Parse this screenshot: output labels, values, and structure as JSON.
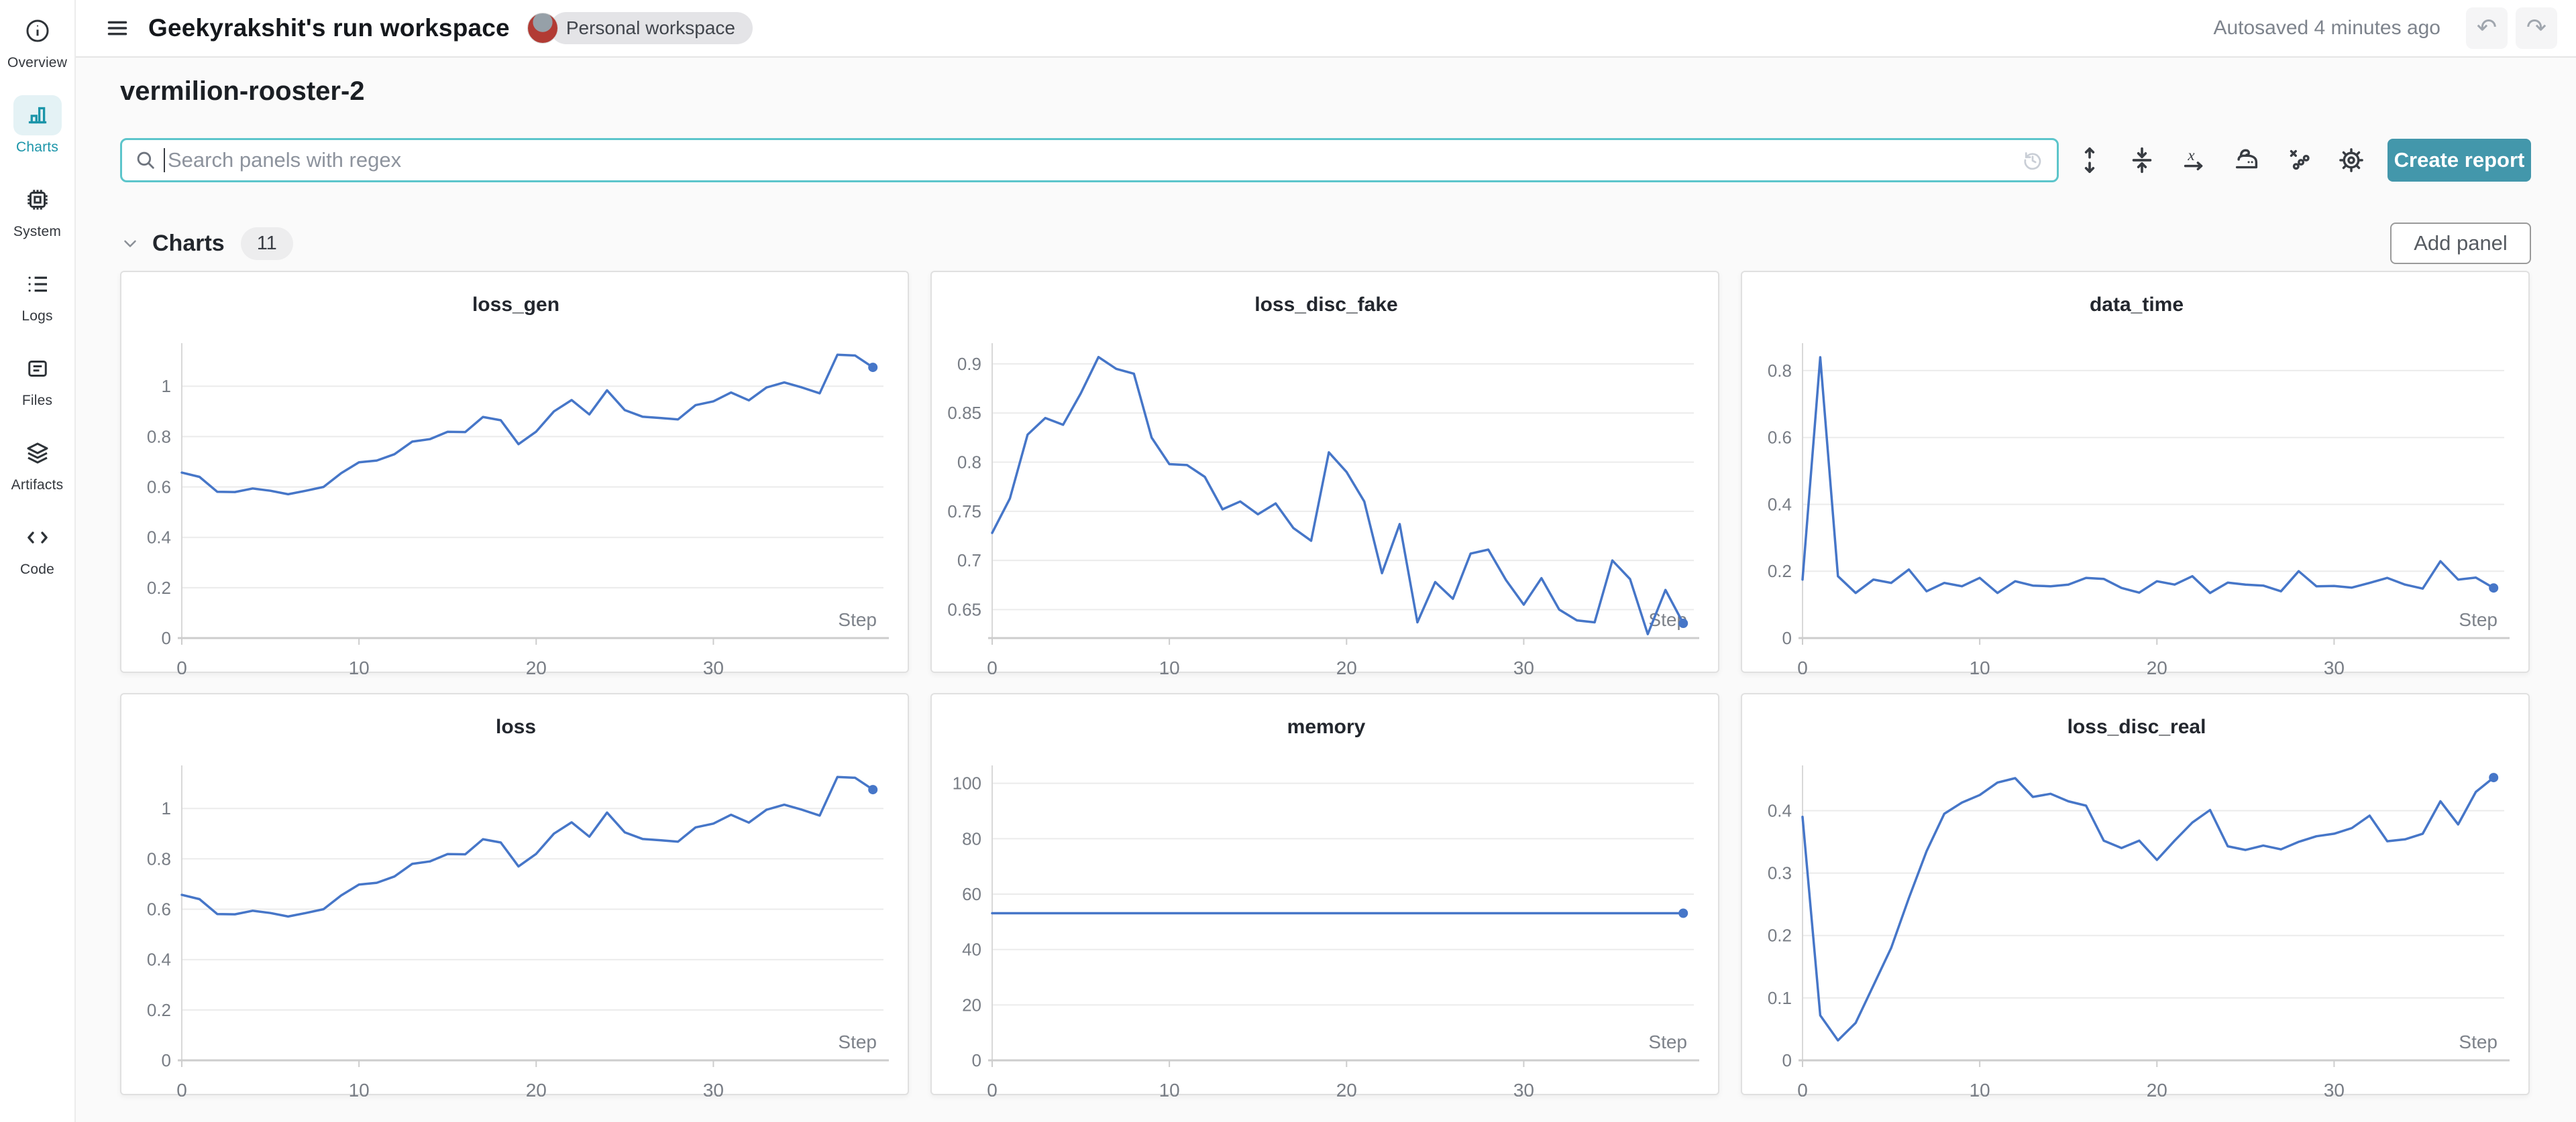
{
  "header": {
    "title": "Geekyrakshit's run workspace",
    "workspace_badge": "Personal workspace",
    "autosaved": "Autosaved 4 minutes ago"
  },
  "sidebar": {
    "items": [
      {
        "label": "Overview",
        "icon": "info-icon",
        "active": false
      },
      {
        "label": "Charts",
        "icon": "bar-chart-icon",
        "active": true
      },
      {
        "label": "System",
        "icon": "cpu-icon",
        "active": false
      },
      {
        "label": "Logs",
        "icon": "list-icon",
        "active": false
      },
      {
        "label": "Files",
        "icon": "document-icon",
        "active": false
      },
      {
        "label": "Artifacts",
        "icon": "layers-icon",
        "active": false
      },
      {
        "label": "Code",
        "icon": "code-icon",
        "active": false
      }
    ]
  },
  "run": {
    "name": "vermilion-rooster-2"
  },
  "search": {
    "placeholder": "Search panels with regex"
  },
  "toolbar": {
    "icons": [
      "expand-panels-icon",
      "collapse-panels-icon",
      "x-axis-icon",
      "smoothing-icon",
      "outliers-icon",
      "settings-gear-icon"
    ],
    "create_report_label": "Create report"
  },
  "section": {
    "label": "Charts",
    "count": "11",
    "add_panel_label": "Add panel"
  },
  "colors": {
    "accent_teal": "#4397ab",
    "search_border": "#5cc5cb",
    "active_nav_teal": "#1b95a9",
    "line_blue": "#4676c8",
    "background": "#fafafa"
  },
  "chart_data": [
    {
      "type": "line",
      "title": "loss_gen",
      "xlabel": "Step",
      "x_ticks": [
        0,
        10,
        20,
        30
      ],
      "xlim": [
        0,
        39.6
      ],
      "y_ticks": [
        0,
        0.2,
        0.4,
        0.6,
        0.8,
        1
      ],
      "ylim": [
        0,
        1.155
      ],
      "x_is_step_index": true,
      "grid": true,
      "color": "#4676c8",
      "values": [
        0.657,
        0.64,
        0.581,
        0.58,
        0.594,
        0.585,
        0.571,
        0.585,
        0.6,
        0.655,
        0.698,
        0.705,
        0.73,
        0.78,
        0.79,
        0.819,
        0.818,
        0.878,
        0.865,
        0.77,
        0.82,
        0.9,
        0.945,
        0.888,
        0.984,
        0.905,
        0.879,
        0.874,
        0.868,
        0.925,
        0.94,
        0.975,
        0.944,
        0.995,
        1.015,
        0.995,
        0.972,
        1.125,
        1.122,
        1.075
      ]
    },
    {
      "type": "line",
      "title": "loss_disc_fake",
      "xlabel": "Step",
      "x_ticks": [
        0,
        10,
        20,
        30
      ],
      "xlim": [
        0,
        39.6
      ],
      "y_ticks": [
        0.65,
        0.7,
        0.75,
        0.8,
        0.85,
        0.9
      ],
      "ylim": [
        0.621,
        0.917
      ],
      "x_is_step_index": true,
      "grid": true,
      "color": "#4676c8",
      "values": [
        0.728,
        0.763,
        0.828,
        0.845,
        0.838,
        0.87,
        0.907,
        0.895,
        0.89,
        0.825,
        0.798,
        0.797,
        0.785,
        0.752,
        0.76,
        0.747,
        0.758,
        0.733,
        0.72,
        0.81,
        0.79,
        0.76,
        0.687,
        0.737,
        0.637,
        0.678,
        0.661,
        0.707,
        0.711,
        0.68,
        0.655,
        0.682,
        0.65,
        0.639,
        0.637,
        0.7,
        0.681,
        0.625,
        0.67,
        0.636
      ]
    },
    {
      "type": "line",
      "title": "data_time",
      "xlabel": "Step",
      "x_ticks": [
        0,
        10,
        20,
        30
      ],
      "xlim": [
        0,
        39.6
      ],
      "y_ticks": [
        0,
        0.2,
        0.4,
        0.6,
        0.8
      ],
      "ylim": [
        0,
        0.87
      ],
      "x_is_step_index": true,
      "grid": true,
      "color": "#4676c8",
      "values": [
        0.175,
        0.84,
        0.185,
        0.135,
        0.175,
        0.165,
        0.205,
        0.14,
        0.165,
        0.155,
        0.18,
        0.135,
        0.17,
        0.157,
        0.155,
        0.16,
        0.18,
        0.177,
        0.15,
        0.136,
        0.17,
        0.16,
        0.185,
        0.135,
        0.166,
        0.16,
        0.157,
        0.14,
        0.2,
        0.155,
        0.156,
        0.151,
        0.165,
        0.18,
        0.16,
        0.148,
        0.23,
        0.175,
        0.181,
        0.15
      ]
    },
    {
      "type": "line",
      "title": "loss",
      "xlabel": "Step",
      "x_ticks": [
        0,
        10,
        20,
        30
      ],
      "xlim": [
        0,
        39.6
      ],
      "y_ticks": [
        0,
        0.2,
        0.4,
        0.6,
        0.8,
        1
      ],
      "ylim": [
        0,
        1.155
      ],
      "x_is_step_index": true,
      "grid": true,
      "color": "#4676c8",
      "values": [
        0.657,
        0.64,
        0.581,
        0.58,
        0.594,
        0.585,
        0.571,
        0.585,
        0.6,
        0.655,
        0.698,
        0.705,
        0.73,
        0.78,
        0.79,
        0.819,
        0.818,
        0.878,
        0.865,
        0.77,
        0.82,
        0.9,
        0.945,
        0.888,
        0.984,
        0.905,
        0.879,
        0.874,
        0.868,
        0.925,
        0.94,
        0.975,
        0.944,
        0.995,
        1.015,
        0.995,
        0.972,
        1.125,
        1.122,
        1.075
      ]
    },
    {
      "type": "line",
      "title": "memory",
      "xlabel": "Step",
      "x_ticks": [
        0,
        10,
        20,
        30
      ],
      "xlim": [
        0,
        39.6
      ],
      "y_ticks": [
        0,
        20,
        40,
        60,
        80,
        100
      ],
      "ylim": [
        0,
        105
      ],
      "x_is_step_index": true,
      "grid": true,
      "color": "#4676c8",
      "values": [
        53.1,
        53.1,
        53.1,
        53.1,
        53.1,
        53.1,
        53.1,
        53.1,
        53.1,
        53.1,
        53.1,
        53.1,
        53.1,
        53.1,
        53.1,
        53.1,
        53.1,
        53.1,
        53.1,
        53.1,
        53.1,
        53.1,
        53.1,
        53.1,
        53.1,
        53.1,
        53.1,
        53.1,
        53.1,
        53.1,
        53.1,
        53.1,
        53.1,
        53.1,
        53.1,
        53.1,
        53.1,
        53.1,
        53.1,
        53.1
      ]
    },
    {
      "type": "line",
      "title": "loss_disc_real",
      "xlabel": "Step",
      "x_ticks": [
        0,
        10,
        20,
        30
      ],
      "xlim": [
        0,
        39.6
      ],
      "y_ticks": [
        0,
        0.1,
        0.2,
        0.3,
        0.4
      ],
      "ylim": [
        0,
        0.466
      ],
      "x_is_step_index": true,
      "grid": true,
      "color": "#4676c8",
      "values": [
        0.39,
        0.072,
        0.032,
        0.06,
        0.12,
        0.18,
        0.26,
        0.335,
        0.395,
        0.413,
        0.425,
        0.445,
        0.452,
        0.422,
        0.427,
        0.415,
        0.408,
        0.352,
        0.34,
        0.352,
        0.321,
        0.352,
        0.381,
        0.401,
        0.343,
        0.337,
        0.344,
        0.338,
        0.35,
        0.359,
        0.363,
        0.372,
        0.392,
        0.351,
        0.354,
        0.363,
        0.415,
        0.378,
        0.43,
        0.453
      ]
    }
  ]
}
